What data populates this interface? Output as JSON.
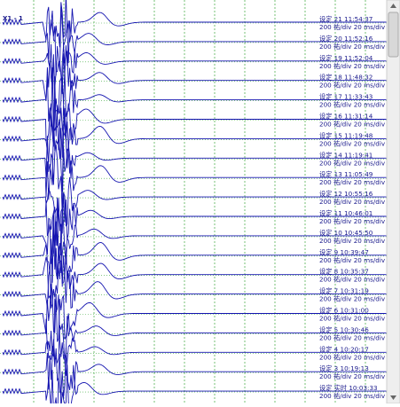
{
  "header": {
    "channel": "X1 - 1"
  },
  "traces": [
    {
      "label": "设定 21 11:54:37",
      "scale": "200 祐/div 20 ms/div"
    },
    {
      "label": "设定 20 11:52:16",
      "scale": "200 祐/div 20 ms/div"
    },
    {
      "label": "设定 19 11:52:04",
      "scale": "200 祐/div 20 ms/div"
    },
    {
      "label": "设定 18 11:48:32",
      "scale": "200 祐/div 20 ms/div"
    },
    {
      "label": "设定 17 11:33:43",
      "scale": "200 祐/div 20 ms/div"
    },
    {
      "label": "设定 16 11:31:14",
      "scale": "200 祐/div 20 ms/div"
    },
    {
      "label": "设定 15 11:19:48",
      "scale": "200 祐/div 20 ms/div"
    },
    {
      "label": "设定 14 11:19:41",
      "scale": "200 祐/div 20 ms/div"
    },
    {
      "label": "设定 13 11:05:49",
      "scale": "200 祐/div 20 ms/div"
    },
    {
      "label": "设定 12 10:55:16",
      "scale": "200 祐/div 20 ms/div"
    },
    {
      "label": "设定 11 10:46:01",
      "scale": "200 祐/div 20 ms/div"
    },
    {
      "label": "设定 10 10:45:50",
      "scale": "200 祐/div 20 ms/div"
    },
    {
      "label": "设定 9 10:39:47",
      "scale": "200 祐/div 20 ms/div"
    },
    {
      "label": "设定 8 10:35:37",
      "scale": "200 祐/div 20 ms/div"
    },
    {
      "label": "设定 7 10:31:19",
      "scale": "200 祐/div 20 ms/div"
    },
    {
      "label": "设定 6 10:31:00",
      "scale": "200 祐/div 20 ms/div"
    },
    {
      "label": "设定 5 10:30:46",
      "scale": "200 祐/div 20 ms/div"
    },
    {
      "label": "设定 4 10:20:17",
      "scale": "200 祐/div 20 ms/div"
    },
    {
      "label": "设定 3 10:19:13",
      "scale": "200 祐/div 20 ms/div"
    },
    {
      "label": "设定 实时 10:03:33",
      "scale": "200 祐/div 20 ms/div"
    }
  ]
}
